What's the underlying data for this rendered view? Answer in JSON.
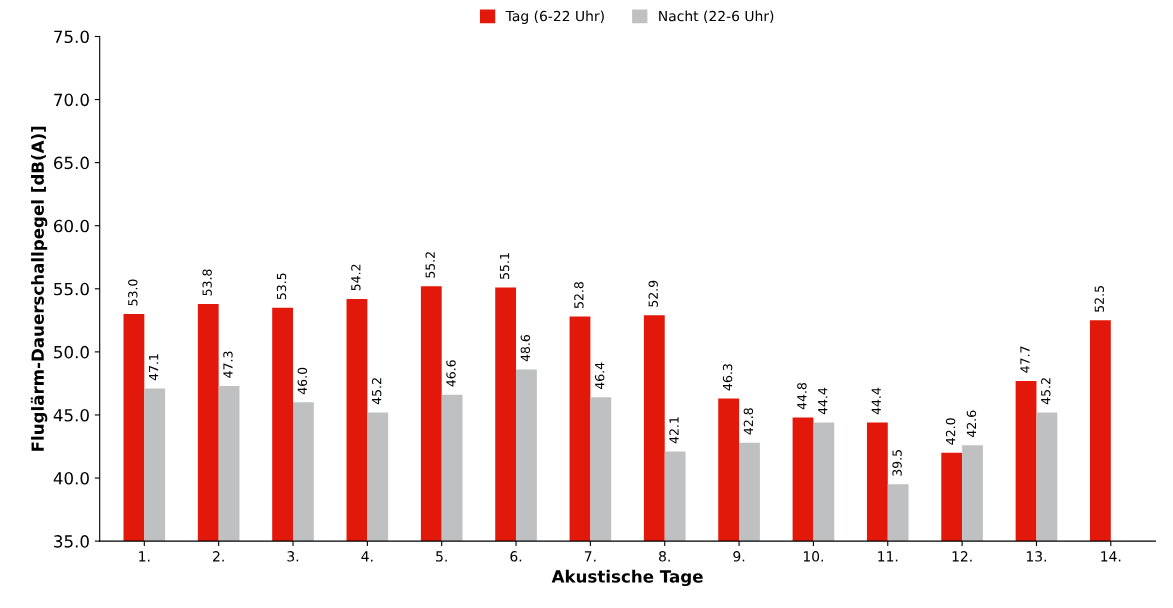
{
  "chart_data": {
    "type": "bar",
    "xlabel": "Akustische Tage",
    "ylabel": "Fluglärm-Dauerschallpegel [dB(A)]",
    "categories": [
      "1.",
      "2.",
      "3.",
      "4.",
      "5.",
      "6.",
      "7.",
      "8.",
      "9.",
      "10.",
      "11.",
      "12.",
      "13.",
      "14."
    ],
    "series": [
      {
        "name": "Tag (6-22 Uhr)",
        "color": "#e2180a",
        "values": [
          53.0,
          53.8,
          53.5,
          54.2,
          55.2,
          55.1,
          52.8,
          52.9,
          46.3,
          44.8,
          44.4,
          42.0,
          47.7,
          52.5
        ],
        "value_labels": [
          "53.0",
          "53.8",
          "53.5",
          "54.2",
          "55.2",
          "55.1",
          "52.8",
          "52.9",
          "46.3",
          "44.8",
          "44.4",
          "42.0",
          "47.7",
          "52.5"
        ]
      },
      {
        "name": "Nacht (22-6 Uhr)",
        "color": "#bfc0c2",
        "values": [
          47.1,
          47.3,
          46.0,
          45.2,
          46.6,
          48.6,
          46.4,
          42.1,
          42.8,
          44.4,
          39.5,
          42.6,
          45.2,
          null
        ],
        "value_labels": [
          "47.1",
          "47.3",
          "46.0",
          "45.2",
          "46.6",
          "48.6",
          "46.4",
          "42.1",
          "42.8",
          "44.4",
          "39.5",
          "42.6",
          "45.2",
          null
        ]
      }
    ],
    "ylim": [
      35,
      75
    ],
    "yticks": [
      {
        "value": 35,
        "label": "35.0"
      },
      {
        "value": 40,
        "label": "40.0"
      },
      {
        "value": 45,
        "label": "45.0"
      },
      {
        "value": 50,
        "label": "50.0"
      },
      {
        "value": 55,
        "label": "55.0"
      },
      {
        "value": 60,
        "label": "60.0"
      },
      {
        "value": 65,
        "label": "65.0"
      },
      {
        "value": 70,
        "label": "70.0"
      },
      {
        "value": 75,
        "label": "75.0"
      }
    ],
    "legend": "top",
    "grid": false
  }
}
